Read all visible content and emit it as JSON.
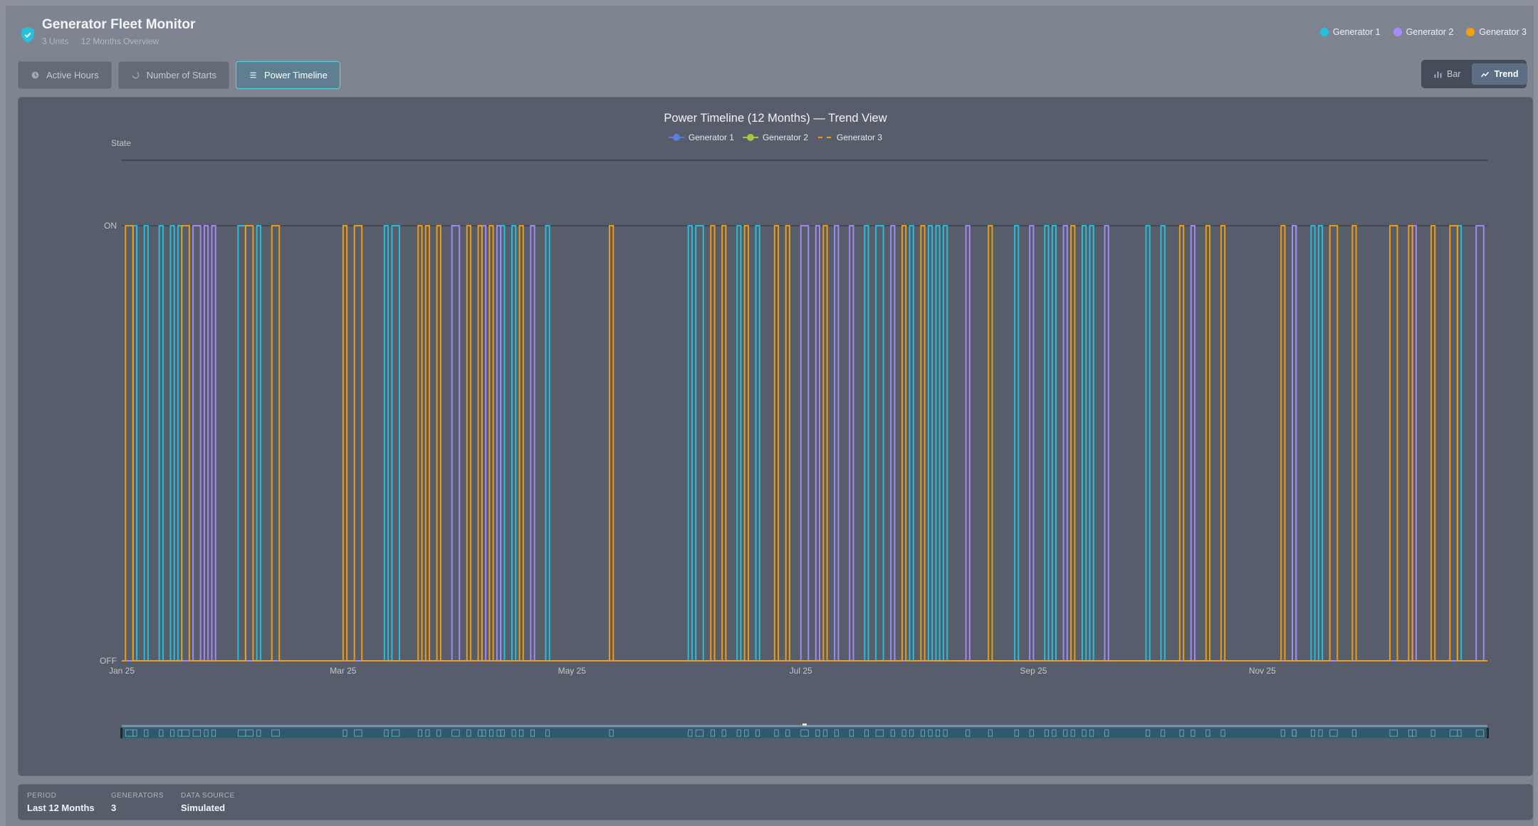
{
  "app": {
    "title": "Generator Fleet Monitor",
    "units": "3 Units",
    "period_overview": "12 Months Overview"
  },
  "legend_top": [
    {
      "label": "Generator 1",
      "color": "#22c3e0"
    },
    {
      "label": "Generator 2",
      "color": "#a78bfa"
    },
    {
      "label": "Generator 3",
      "color": "#f59e0b"
    }
  ],
  "tabs": [
    {
      "label": "Active Hours",
      "icon": "clock-icon",
      "active": false
    },
    {
      "label": "Number of Starts",
      "icon": "restart-icon",
      "active": false
    },
    {
      "label": "Power Timeline",
      "icon": "list-icon",
      "active": true
    }
  ],
  "view_toggle": {
    "bar_label": "Bar",
    "trend_label": "Trend",
    "selected": "Trend"
  },
  "chart_data": {
    "type": "line",
    "title": "Power Timeline (12 Months) — Trend View",
    "ylabel": "State",
    "y_categories": [
      "OFF",
      "ON"
    ],
    "x_tick_labels": [
      "Jan 25",
      "Mar 25",
      "May 25",
      "Jul 25",
      "Sep 25",
      "Nov 25"
    ],
    "x_range": [
      "2025-01-01",
      "2025-12-31"
    ],
    "legend_placement": "top-center",
    "series": [
      {
        "name": "Generator 1",
        "color": "#22c3e0",
        "legend_marker_color": "#5b7fe0",
        "on_intervals": [
          [
            "2025-01-04",
            "2025-01-05"
          ],
          [
            "2025-01-07",
            "2025-01-08"
          ],
          [
            "2025-01-11",
            "2025-01-12"
          ],
          [
            "2025-01-14",
            "2025-01-15"
          ],
          [
            "2025-01-16",
            "2025-01-17"
          ],
          [
            "2025-02-01",
            "2025-02-03"
          ],
          [
            "2025-02-06",
            "2025-02-07"
          ],
          [
            "2025-03-12",
            "2025-03-13"
          ],
          [
            "2025-03-14",
            "2025-03-16"
          ],
          [
            "2025-04-12",
            "2025-04-13"
          ],
          [
            "2025-04-15",
            "2025-04-16"
          ],
          [
            "2025-04-24",
            "2025-04-25"
          ],
          [
            "2025-06-01",
            "2025-06-02"
          ],
          [
            "2025-06-03",
            "2025-06-05"
          ],
          [
            "2025-06-14",
            "2025-06-15"
          ],
          [
            "2025-06-19",
            "2025-06-20"
          ],
          [
            "2025-07-18",
            "2025-07-19"
          ],
          [
            "2025-07-21",
            "2025-07-23"
          ],
          [
            "2025-07-30",
            "2025-07-31"
          ],
          [
            "2025-08-04",
            "2025-08-05"
          ],
          [
            "2025-08-06",
            "2025-08-07"
          ],
          [
            "2025-08-08",
            "2025-08-09"
          ],
          [
            "2025-08-27",
            "2025-08-28"
          ],
          [
            "2025-09-04",
            "2025-09-05"
          ],
          [
            "2025-09-06",
            "2025-09-07"
          ],
          [
            "2025-09-14",
            "2025-09-15"
          ],
          [
            "2025-09-16",
            "2025-09-17"
          ],
          [
            "2025-10-01",
            "2025-10-02"
          ],
          [
            "2025-10-05",
            "2025-10-06"
          ],
          [
            "2025-11-09",
            "2025-11-10"
          ],
          [
            "2025-11-14",
            "2025-11-15"
          ],
          [
            "2025-11-16",
            "2025-11-17"
          ],
          [
            "2025-12-23",
            "2025-12-24"
          ]
        ]
      },
      {
        "name": "Generator 2",
        "color": "#a78bfa",
        "legend_marker_color": "#a3c943",
        "on_intervals": [
          [
            "2025-01-20",
            "2025-01-22"
          ],
          [
            "2025-01-23",
            "2025-01-24"
          ],
          [
            "2025-01-25",
            "2025-01-26"
          ],
          [
            "2025-03-30",
            "2025-04-01"
          ],
          [
            "2025-04-07",
            "2025-04-08"
          ],
          [
            "2025-04-11",
            "2025-04-12"
          ],
          [
            "2025-04-20",
            "2025-04-21"
          ],
          [
            "2025-07-01",
            "2025-07-03"
          ],
          [
            "2025-07-05",
            "2025-07-06"
          ],
          [
            "2025-07-10",
            "2025-07-11"
          ],
          [
            "2025-07-14",
            "2025-07-15"
          ],
          [
            "2025-07-25",
            "2025-07-26"
          ],
          [
            "2025-08-14",
            "2025-08-15"
          ],
          [
            "2025-08-31",
            "2025-09-01"
          ],
          [
            "2025-09-09",
            "2025-09-10"
          ],
          [
            "2025-09-20",
            "2025-09-21"
          ],
          [
            "2025-10-13",
            "2025-10-14"
          ],
          [
            "2025-11-09",
            "2025-11-10"
          ],
          [
            "2025-12-11",
            "2025-12-12"
          ],
          [
            "2025-12-28",
            "2025-12-30"
          ]
        ]
      },
      {
        "name": "Generator 3",
        "color": "#f59e0b",
        "legend_marker_color": "#f59e0b",
        "on_intervals": [
          [
            "2025-01-02",
            "2025-01-04"
          ],
          [
            "2025-01-17",
            "2025-01-19"
          ],
          [
            "2025-02-03",
            "2025-02-05"
          ],
          [
            "2025-02-10",
            "2025-02-12"
          ],
          [
            "2025-03-01",
            "2025-03-02"
          ],
          [
            "2025-03-04",
            "2025-03-06"
          ],
          [
            "2025-03-21",
            "2025-03-22"
          ],
          [
            "2025-03-23",
            "2025-03-24"
          ],
          [
            "2025-03-26",
            "2025-03-27"
          ],
          [
            "2025-04-03",
            "2025-04-04"
          ],
          [
            "2025-04-06",
            "2025-04-07"
          ],
          [
            "2025-04-09",
            "2025-04-10"
          ],
          [
            "2025-04-17",
            "2025-04-18"
          ],
          [
            "2025-05-11",
            "2025-05-12"
          ],
          [
            "2025-06-07",
            "2025-06-08"
          ],
          [
            "2025-06-10",
            "2025-06-11"
          ],
          [
            "2025-06-16",
            "2025-06-17"
          ],
          [
            "2025-06-24",
            "2025-06-25"
          ],
          [
            "2025-06-27",
            "2025-06-28"
          ],
          [
            "2025-07-07",
            "2025-07-08"
          ],
          [
            "2025-07-28",
            "2025-07-29"
          ],
          [
            "2025-08-02",
            "2025-08-03"
          ],
          [
            "2025-08-20",
            "2025-08-21"
          ],
          [
            "2025-09-11",
            "2025-09-12"
          ],
          [
            "2025-10-10",
            "2025-10-11"
          ],
          [
            "2025-10-17",
            "2025-10-18"
          ],
          [
            "2025-10-21",
            "2025-10-22"
          ],
          [
            "2025-11-06",
            "2025-11-07"
          ],
          [
            "2025-11-19",
            "2025-11-21"
          ],
          [
            "2025-11-25",
            "2025-11-26"
          ],
          [
            "2025-12-05",
            "2025-12-07"
          ],
          [
            "2025-12-10",
            "2025-12-11"
          ],
          [
            "2025-12-16",
            "2025-12-17"
          ],
          [
            "2025-12-21",
            "2025-12-23"
          ]
        ]
      }
    ]
  },
  "footer": {
    "period_label": "PERIOD",
    "period_value": "Last 12 Months",
    "generators_label": "GENERATORS",
    "generators_value": "3",
    "source_label": "DATA SOURCE",
    "source_value": "Simulated"
  }
}
